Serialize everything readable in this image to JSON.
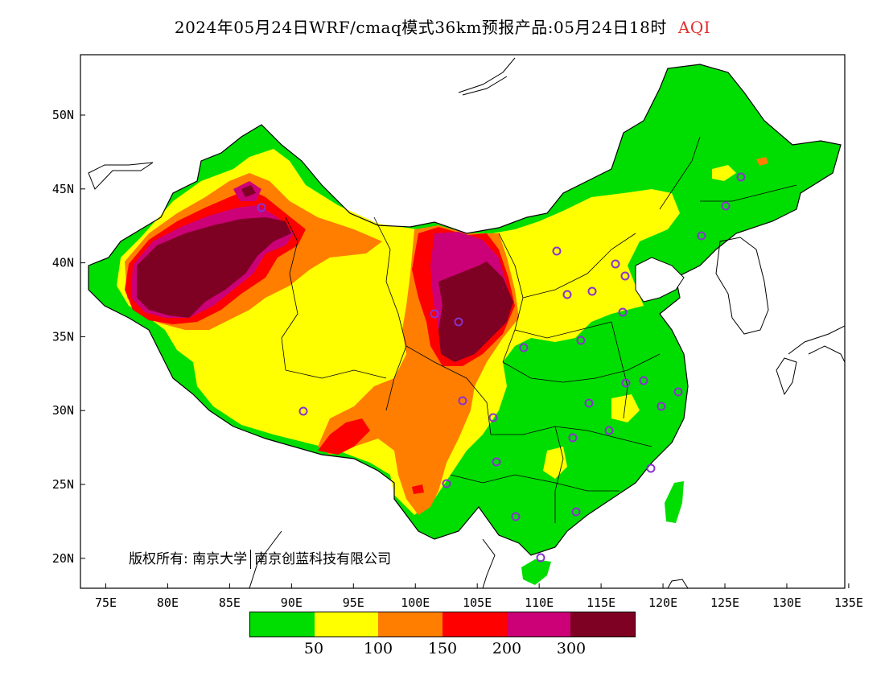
{
  "title": {
    "main": "2024年05月24日WRF/cmaq模式36km预报产品:05月24日18时",
    "variable": "AQI"
  },
  "axes": {
    "x_ticks": [
      "75E",
      "80E",
      "85E",
      "90E",
      "95E",
      "100E",
      "105E",
      "110E",
      "115E",
      "120E",
      "125E",
      "130E",
      "135E"
    ],
    "y_ticks": [
      "50N",
      "45N",
      "40N",
      "35N",
      "30N",
      "25N",
      "20N"
    ]
  },
  "legend": {
    "colors": [
      "#00dd00",
      "#ffff00",
      "#ff7e00",
      "#ff0000",
      "#cc0077",
      "#7e0023"
    ],
    "labels": [
      "50",
      "100",
      "150",
      "200",
      "300"
    ]
  },
  "copyright": {
    "prefix": "版权所有:",
    "org1": "南京大学",
    "org2": "南京创蓝科技有限公司"
  },
  "map_layers": {
    "good": "#00dd00",
    "moderate": "#ffff00",
    "unhealthy_sensitive": "#ff7e00",
    "unhealthy": "#ff0000",
    "very_unhealthy": "#cc0077",
    "hazardous": "#7e0023",
    "station_marker": "#8833cc"
  }
}
